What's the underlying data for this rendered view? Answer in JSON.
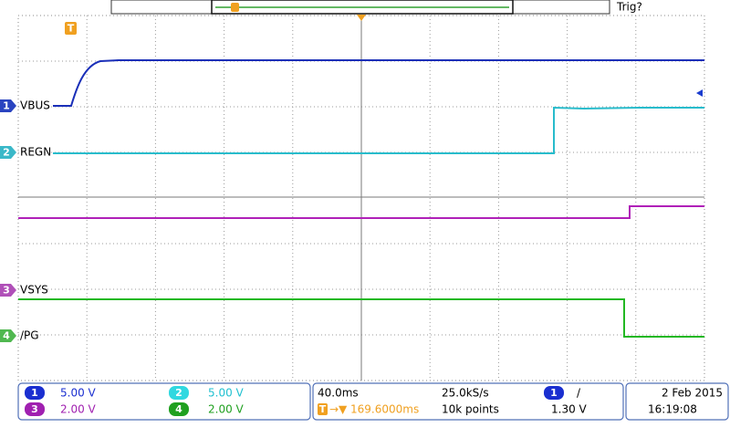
{
  "header": {
    "trigger_status": "Trig?"
  },
  "channels": [
    {
      "number": "1",
      "label": "VBUS",
      "scale": "5.00 V"
    },
    {
      "number": "2",
      "label": "REGN",
      "scale": "5.00 V"
    },
    {
      "number": "3",
      "label": "VSYS",
      "scale": "2.00 V"
    },
    {
      "number": "4",
      "label": "/PG",
      "scale": "2.00 V"
    }
  ],
  "timebase": {
    "scale": "40.0ms",
    "sample_rate": "25.0kS/s",
    "record_length": "10k points",
    "trigger_position": "169.6000ms"
  },
  "trigger": {
    "source": "1",
    "slope": "/",
    "level": "1.30 V"
  },
  "datetime": {
    "date": "2 Feb 2015",
    "time": "16:19:08"
  }
}
